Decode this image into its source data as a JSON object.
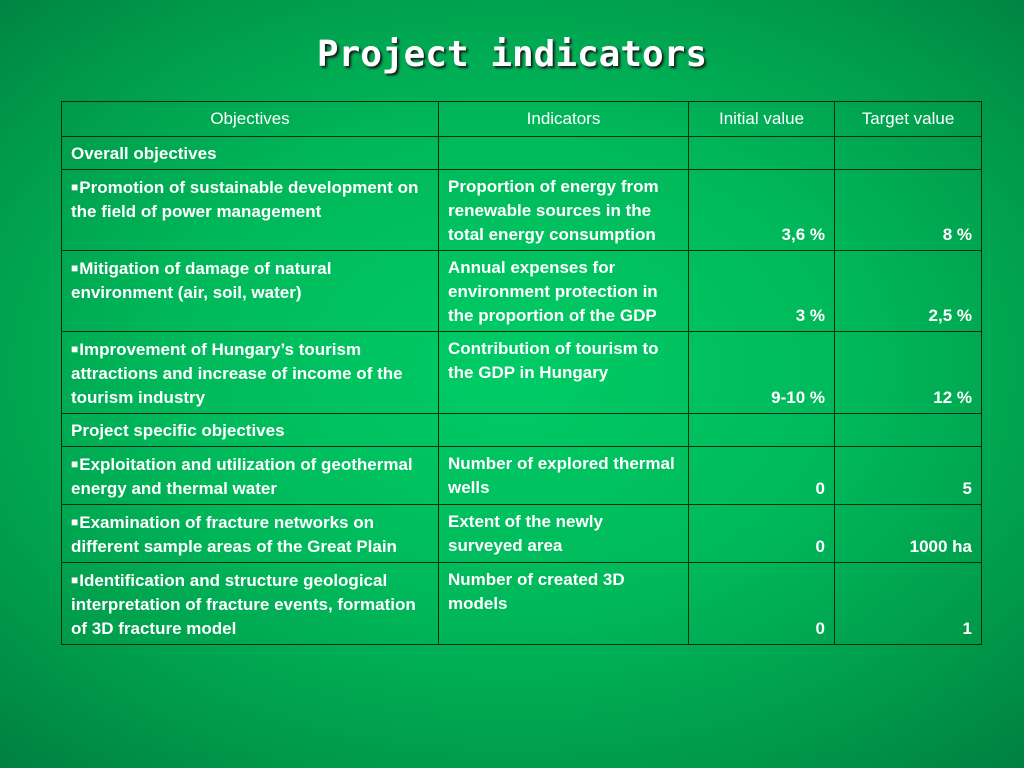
{
  "slide": {
    "title": "Project indicators"
  },
  "table": {
    "headers": [
      "Objectives",
      "Indicators",
      "Initial value",
      "Target value"
    ],
    "sections": [
      {
        "label": "Overall objectives",
        "rows": [
          {
            "objective": "Promotion of sustainable development on the field of power management",
            "indicator": "Proportion of energy from renewable sources in the total energy consumption",
            "initial": "3,6 %",
            "target": "8 %"
          },
          {
            "objective": "Mitigation of damage of natural environment (air, soil, water)",
            "indicator": "Annual expenses for environment protection in the proportion of the GDP",
            "initial": "3 %",
            "target": "2,5 %"
          },
          {
            "objective": "Improvement of Hungary’s tourism attractions and increase of income of the tourism industry",
            "indicator": "Contribution of tourism to the GDP in Hungary",
            "initial": "9-10 %",
            "target": "12 %"
          }
        ]
      },
      {
        "label": "Project specific objectives",
        "rows": [
          {
            "objective": "Exploitation and utilization of geothermal energy and thermal water",
            "indicator": "Number of explored thermal wells",
            "initial": "0",
            "target": "5"
          },
          {
            "objective": "Examination of fracture networks on different sample areas of the Great Plain",
            "indicator": "Extent of the newly surveyed area",
            "initial": "0",
            "target": "1000 ha"
          },
          {
            "objective": "Identification and structure geological interpretation of fracture events, formation of 3D fracture model",
            "indicator": "Number of created 3D models",
            "initial": "0",
            "target": "1"
          }
        ]
      }
    ]
  }
}
